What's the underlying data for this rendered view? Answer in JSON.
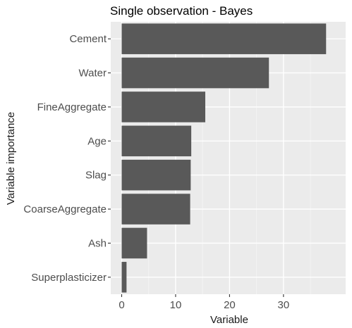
{
  "chart_data": {
    "type": "bar",
    "orientation": "horizontal",
    "title": "Single observation - Bayes",
    "xlabel": "Variable",
    "ylabel": "Variable importance",
    "categories": [
      "Cement",
      "Water",
      "FineAggregate",
      "Age",
      "Slag",
      "CoarseAggregate",
      "Ash",
      "Superplasticizer"
    ],
    "values": [
      37.9,
      27.3,
      15.5,
      12.9,
      12.8,
      12.7,
      4.7,
      0.9
    ],
    "xlim": [
      0,
      39.5
    ],
    "xticks": [
      0,
      10,
      20,
      30
    ],
    "grid": true,
    "legend": "none",
    "colors": {
      "bar": "#595959",
      "panel": "#ebebeb",
      "grid_major": "#ffffff",
      "grid_minor": "#f5f5f5",
      "tick": "#333333"
    }
  }
}
